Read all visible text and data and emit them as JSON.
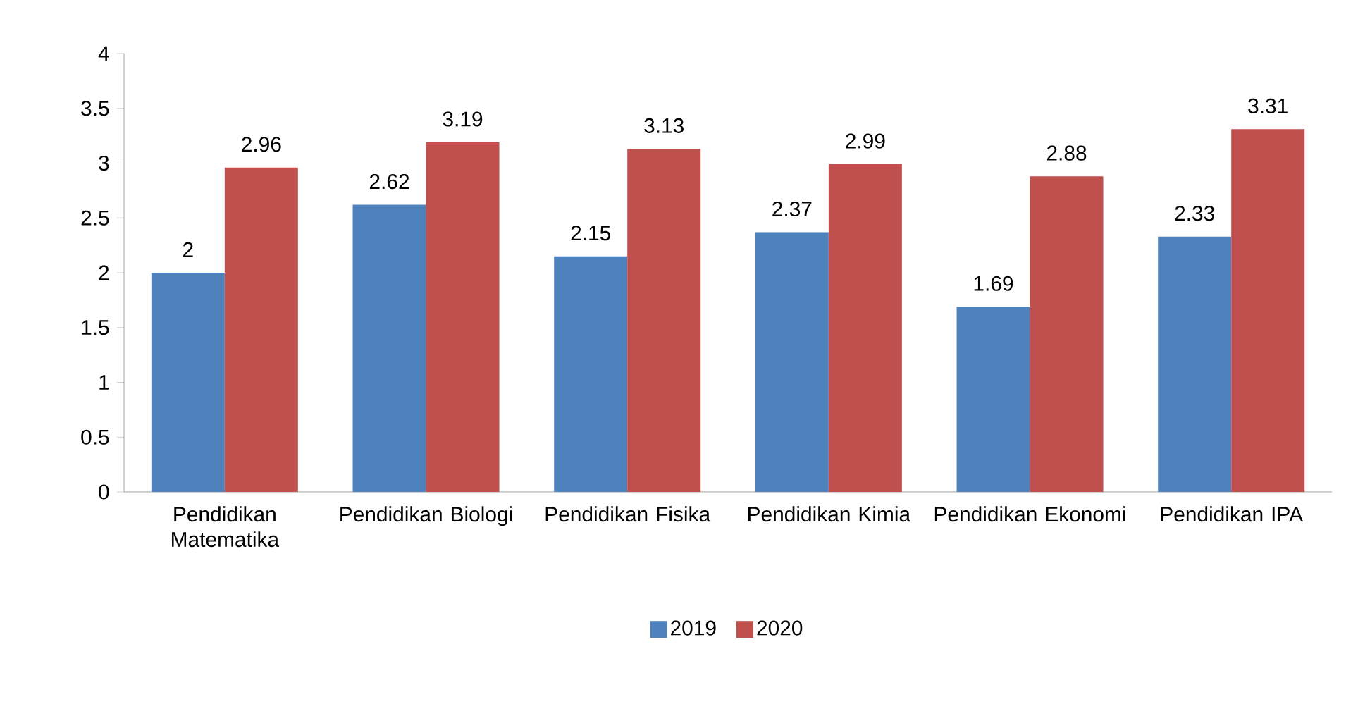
{
  "chart_data": {
    "type": "bar",
    "categories": [
      "Pendidikan Matematika",
      "Pendidikan Biologi",
      "Pendidikan Fisika",
      "Pendidikan Kimia",
      "Pendidikan Ekonomi",
      "Pendidikan IPA"
    ],
    "series": [
      {
        "name": "2019",
        "color": "#4f81bd",
        "values": [
          2,
          2.62,
          2.15,
          2.37,
          1.69,
          2.33
        ]
      },
      {
        "name": "2020",
        "color": "#c0504d",
        "values": [
          2.96,
          3.19,
          3.13,
          2.99,
          2.88,
          3.31
        ]
      }
    ],
    "ylim": [
      0,
      4
    ],
    "yticks": [
      0,
      0.5,
      1,
      1.5,
      2,
      2.5,
      3,
      3.5,
      4
    ],
    "data_labels": true,
    "legend": "bottom",
    "grid": false
  }
}
